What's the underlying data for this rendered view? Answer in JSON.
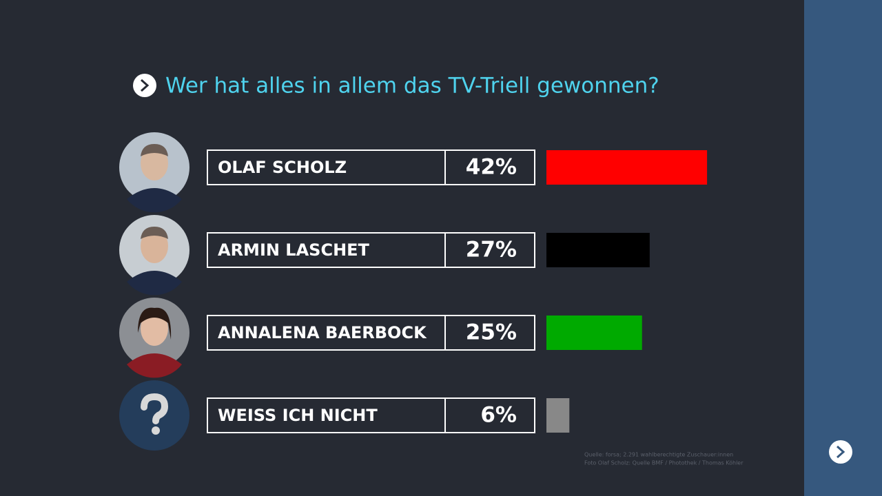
{
  "chart_data": {
    "type": "bar",
    "orientation": "horizontal",
    "title": "Wer hat alles in allem das TV-Triell gewonnen?",
    "categories": [
      "OLAF SCHOLZ",
      "ARMIN LASCHET",
      "ANNALENA BAERBOCK",
      "WEISS ICH NICHT"
    ],
    "values": [
      42,
      27,
      25,
      6
    ],
    "value_labels": [
      "42%",
      "27%",
      "25%",
      "6%"
    ],
    "colors": [
      "#ff0000",
      "#000000",
      "#00aa00",
      "#888888"
    ],
    "notes": [
      "Quelle: forsa; 2.291 wahlberechtigte Zuschauer:innen",
      "Foto Olaf Scholz: Quelle BMF / Photothek / Thomas Köhler"
    ]
  }
}
